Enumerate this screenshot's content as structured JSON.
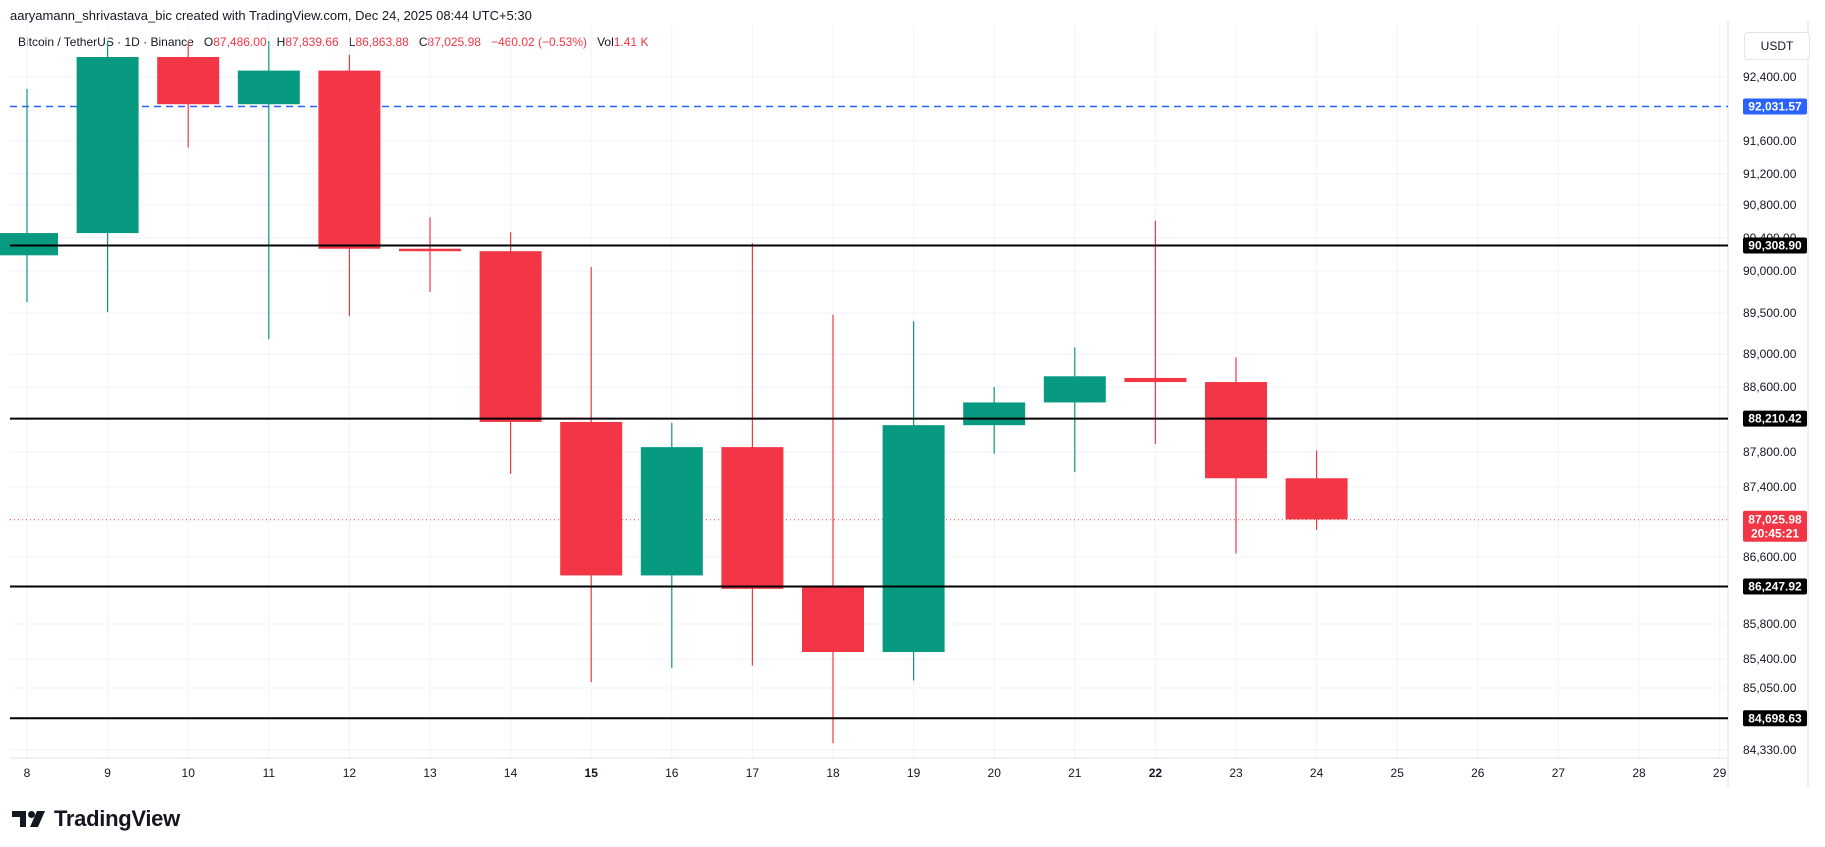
{
  "header": {
    "credit": "aaryamann_shrivastava_bic created with TradingView.com, Dec 24, 2025 08:44 UTC+5:30"
  },
  "legend": {
    "symbol": "Bitcoin / TetherUS · 1D · Binance",
    "open_label": "O",
    "open": "87,486.00",
    "high_label": "H",
    "high": "87,839.66",
    "low_label": "L",
    "low": "86,863.88",
    "close_label": "C",
    "close": "87,025.98",
    "change": "−460.02 (−0.53%)",
    "vol_label": "Vol",
    "vol": "1.41 K"
  },
  "currency_unit": "USDT",
  "brand": {
    "name": "TradingView"
  },
  "colors": {
    "up": "#089981",
    "down": "#f23645",
    "blue_line": "#2962ff",
    "level_line": "#000000",
    "grid": "#f0f3fa"
  },
  "chart_data": {
    "type": "candlestick",
    "x_ticks": [
      "8",
      "9",
      "10",
      "11",
      "12",
      "13",
      "14",
      "15",
      "16",
      "17",
      "18",
      "19",
      "20",
      "21",
      "22",
      "23",
      "24",
      "25",
      "26",
      "27",
      "28",
      "29"
    ],
    "bold_ticks": [
      "15",
      "22"
    ],
    "y_ticks": [
      "92,400.00",
      "91,600.00",
      "91,200.00",
      "90,800.00",
      "90,400.00",
      "90,000.00",
      "89,500.00",
      "89,000.00",
      "88,600.00",
      "87,800.00",
      "87,400.00",
      "86,600.00",
      "85,800.00",
      "85,400.00",
      "85,050.00",
      "84,330.00"
    ],
    "candles": [
      {
        "day": "8",
        "open": 90190,
        "high": 92250,
        "low": 89630,
        "close": 90460
      },
      {
        "day": "9",
        "open": 90460,
        "high": 92850,
        "low": 89510,
        "close": 92650
      },
      {
        "day": "10",
        "open": 92650,
        "high": 92850,
        "low": 91520,
        "close": 92060
      },
      {
        "day": "11",
        "open": 92060,
        "high": 92850,
        "low": 89180,
        "close": 92480
      },
      {
        "day": "12",
        "open": 92480,
        "high": 92680,
        "low": 89460,
        "close": 90270
      },
      {
        "day": "13",
        "open": 90270,
        "high": 90650,
        "low": 89750,
        "close": 90240
      },
      {
        "day": "14",
        "open": 90240,
        "high": 90470,
        "low": 87550,
        "close": 88170
      },
      {
        "day": "15",
        "open": 88170,
        "high": 90050,
        "low": 85120,
        "close": 86380
      },
      {
        "day": "16",
        "open": 86380,
        "high": 88160,
        "low": 85290,
        "close": 87860
      },
      {
        "day": "17",
        "open": 87860,
        "high": 90340,
        "low": 85320,
        "close": 86220
      },
      {
        "day": "18",
        "open": 86250,
        "high": 89480,
        "low": 84410,
        "close": 85480
      },
      {
        "day": "19",
        "open": 85480,
        "high": 89400,
        "low": 85140,
        "close": 88130
      },
      {
        "day": "20",
        "open": 88130,
        "high": 88600,
        "low": 87780,
        "close": 88410
      },
      {
        "day": "21",
        "open": 88410,
        "high": 89080,
        "low": 87570,
        "close": 88730
      },
      {
        "day": "22",
        "open": 88710,
        "high": 90610,
        "low": 87900,
        "close": 88660
      },
      {
        "day": "23",
        "open": 88660,
        "high": 88960,
        "low": 86640,
        "close": 87500
      },
      {
        "day": "24",
        "open": 87500,
        "high": 87820,
        "low": 86910,
        "close": 87030
      }
    ],
    "horizontal_levels": [
      {
        "value": 90308.9,
        "label": "90,308.90"
      },
      {
        "value": 88210.42,
        "label": "88,210.42"
      },
      {
        "value": 86247.92,
        "label": "86,247.92"
      },
      {
        "value": 84698.63,
        "label": "84,698.63"
      }
    ],
    "blue_level": {
      "value": 92031.57,
      "label": "92,031.57"
    },
    "current_price": {
      "value": 87025.98,
      "label": "87,025.98",
      "countdown": "20:45:21"
    }
  }
}
